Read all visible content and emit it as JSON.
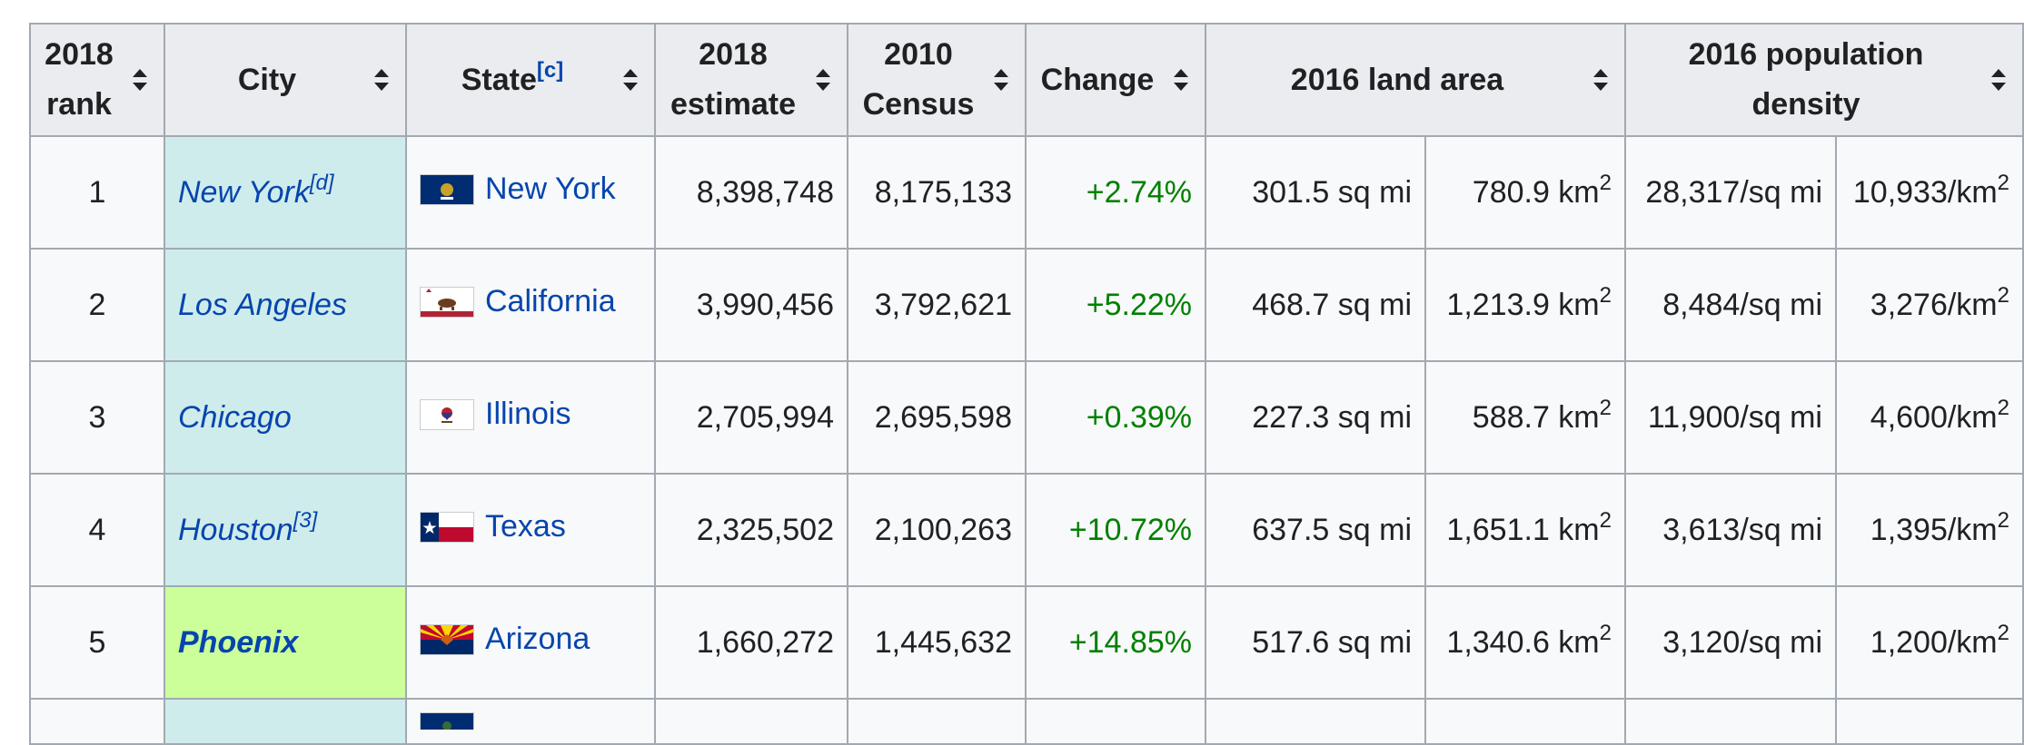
{
  "headers": {
    "rank": [
      "2018",
      "rank"
    ],
    "city": "City",
    "state": "State",
    "state_note": "[c]",
    "estimate": [
      "2018",
      "estimate"
    ],
    "census": [
      "2010",
      "Census"
    ],
    "change": "Change",
    "land_area": "2016 land area",
    "density": [
      "2016 population",
      "density"
    ]
  },
  "rows": [
    {
      "rank": "1",
      "city": "New York",
      "city_note": "[d]",
      "state": "New York",
      "flag": "new-york-flag",
      "estimate": "8,398,748",
      "census": "8,175,133",
      "change": "+2.74%",
      "area_sqmi": "301.5 sq mi",
      "area_km": "780.9 km",
      "density_sqmi": "28,317/sq mi",
      "density_km": "10,933/km"
    },
    {
      "rank": "2",
      "city": "Los Angeles",
      "city_note": "",
      "state": "California",
      "flag": "california-flag",
      "estimate": "3,990,456",
      "census": "3,792,621",
      "change": "+5.22%",
      "area_sqmi": "468.7 sq mi",
      "area_km": "1,213.9 km",
      "density_sqmi": "8,484/sq mi",
      "density_km": "3,276/km"
    },
    {
      "rank": "3",
      "city": "Chicago",
      "city_note": "",
      "state": "Illinois",
      "flag": "illinois-flag",
      "estimate": "2,705,994",
      "census": "2,695,598",
      "change": "+0.39%",
      "area_sqmi": "227.3 sq mi",
      "area_km": "588.7 km",
      "density_sqmi": "11,900/sq mi",
      "density_km": "4,600/km"
    },
    {
      "rank": "4",
      "city": "Houston",
      "city_note": "[3]",
      "state": "Texas",
      "flag": "texas-flag",
      "estimate": "2,325,502",
      "census": "2,100,263",
      "change": "+10.72%",
      "area_sqmi": "637.5 sq mi",
      "area_km": "1,651.1 km",
      "density_sqmi": "3,613/sq mi",
      "density_km": "1,395/km"
    },
    {
      "rank": "5",
      "city": "Phoenix",
      "city_note": "",
      "state": "Arizona",
      "flag": "arizona-flag",
      "estimate": "1,660,272",
      "census": "1,445,632",
      "change": "+14.85%",
      "area_sqmi": "517.6 sq mi",
      "area_km": "1,340.6 km",
      "density_sqmi": "3,120/sq mi",
      "density_km": "1,200/km"
    }
  ],
  "superscript_2": "2",
  "colors": {
    "header_bg": "#eaecf0",
    "border": "#a2a9b1",
    "city_bg": "#cfecec",
    "capital_bg": "#ccff99",
    "link": "#0645ad",
    "change": "#008000"
  }
}
